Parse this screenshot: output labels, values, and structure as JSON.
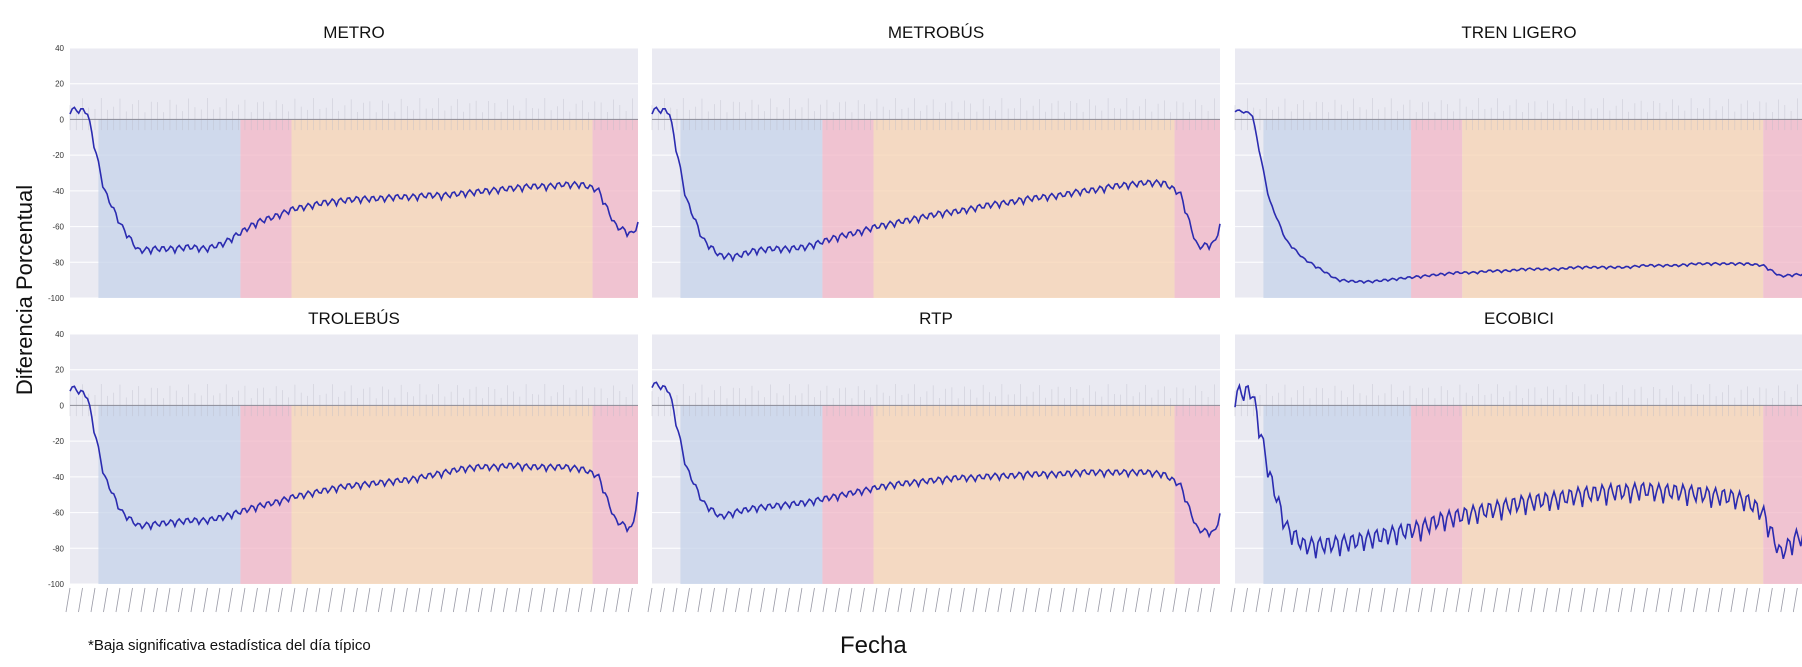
{
  "figure": {
    "y_axis_title": "Diferencia Porcentual",
    "x_axis_title": "Fecha",
    "footnote": "*Baja significativa estadística del día típico"
  },
  "colors": {
    "line": "#2b2bb0",
    "plot_bg": "#eaeaf2",
    "phase_1": "#c5d3ea",
    "phase_2": "#f2b6c6",
    "phase_3": "#f7d3b2",
    "phase_4": "#f2b6c6",
    "reference_bars": "#b9b9c6"
  },
  "chart_data": [
    {
      "type": "line",
      "title": "METRO",
      "ylim": [
        -100,
        40
      ],
      "yticks": [
        40,
        20,
        0,
        -20,
        -40,
        -60,
        -80,
        -100
      ],
      "grid": true,
      "series": [
        {
          "x": [
            0,
            3,
            6,
            9,
            12,
            15,
            18,
            21,
            24,
            27,
            30,
            33,
            36,
            39,
            42,
            45,
            48,
            51,
            54,
            57,
            60,
            63,
            66,
            69,
            72,
            75,
            78,
            81,
            84,
            87,
            90,
            93,
            96,
            99,
            100
          ],
          "y": [
            5,
            4,
            -40,
            -60,
            -74,
            -73,
            -73,
            -72,
            -73,
            -70,
            -64,
            -58,
            -55,
            -51,
            -49,
            -47,
            -46,
            -45,
            -45,
            -44,
            -44,
            -43,
            -43,
            -42,
            -41,
            -40,
            -39,
            -38,
            -38,
            -37,
            -37,
            -40,
            -60,
            -65,
            -59
          ]
        }
      ],
      "phase_bounds": [
        0,
        5,
        30,
        39,
        92,
        100
      ]
    },
    {
      "type": "line",
      "title": "METROBÚS",
      "ylim": [
        -100,
        40
      ],
      "yticks": [
        40,
        20,
        0,
        -20,
        -40,
        -60,
        -80,
        -100
      ],
      "grid": true,
      "series": [
        {
          "x": [
            0,
            3,
            6,
            9,
            12,
            15,
            18,
            21,
            24,
            27,
            30,
            33,
            36,
            39,
            42,
            45,
            48,
            51,
            54,
            57,
            60,
            63,
            66,
            69,
            72,
            75,
            78,
            81,
            84,
            87,
            90,
            93,
            96,
            99,
            100
          ],
          "y": [
            5,
            4,
            -45,
            -68,
            -77,
            -77,
            -74,
            -73,
            -73,
            -72,
            -69,
            -66,
            -64,
            -61,
            -59,
            -57,
            -55,
            -53,
            -52,
            -50,
            -48,
            -47,
            -45,
            -44,
            -43,
            -41,
            -40,
            -38,
            -37,
            -36,
            -36,
            -42,
            -72,
            -70,
            -60
          ]
        }
      ],
      "phase_bounds": [
        0,
        5,
        30,
        39,
        92,
        100
      ]
    },
    {
      "type": "line",
      "title": "TREN LIGERO",
      "ylim": [
        -100,
        40
      ],
      "yticks": [
        40,
        20,
        0,
        -20,
        -40,
        -60,
        -80,
        -100
      ],
      "grid": true,
      "series": [
        {
          "x": [
            0,
            3,
            6,
            9,
            12,
            15,
            18,
            21,
            24,
            27,
            30,
            33,
            36,
            39,
            42,
            45,
            48,
            51,
            54,
            57,
            60,
            63,
            66,
            69,
            72,
            75,
            78,
            81,
            84,
            87,
            90,
            93,
            96,
            99,
            100
          ],
          "y": [
            5,
            3,
            -45,
            -68,
            -78,
            -84,
            -90,
            -91,
            -91,
            -90,
            -89,
            -88,
            -87,
            -86,
            -86,
            -85,
            -85,
            -84,
            -84,
            -84,
            -83,
            -83,
            -83,
            -83,
            -82,
            -82,
            -82,
            -81,
            -81,
            -81,
            -81,
            -82,
            -88,
            -87,
            -87
          ]
        }
      ],
      "phase_bounds": [
        0,
        5,
        31,
        40,
        93,
        100
      ]
    },
    {
      "type": "line",
      "title": "TROLEBÚS",
      "ylim": [
        -100,
        40
      ],
      "yticks": [
        40,
        20,
        0,
        -20,
        -40,
        -60,
        -80,
        -100
      ],
      "grid": true,
      "series": [
        {
          "x": [
            0,
            3,
            6,
            9,
            12,
            15,
            18,
            21,
            24,
            27,
            30,
            33,
            36,
            39,
            42,
            45,
            48,
            51,
            54,
            57,
            60,
            63,
            66,
            69,
            72,
            75,
            78,
            81,
            84,
            87,
            90,
            93,
            96,
            99,
            100
          ],
          "y": [
            10,
            5,
            -40,
            -60,
            -68,
            -67,
            -66,
            -65,
            -65,
            -63,
            -60,
            -57,
            -55,
            -52,
            -50,
            -48,
            -46,
            -45,
            -44,
            -43,
            -42,
            -40,
            -38,
            -36,
            -35,
            -35,
            -34,
            -35,
            -35,
            -35,
            -36,
            -40,
            -65,
            -70,
            -50
          ]
        }
      ],
      "phase_bounds": [
        0,
        5,
        30,
        39,
        92,
        100
      ]
    },
    {
      "type": "line",
      "title": "RTP",
      "ylim": [
        -100,
        40
      ],
      "yticks": [
        40,
        20,
        0,
        -20,
        -40,
        -60,
        -80,
        -100
      ],
      "grid": true,
      "series": [
        {
          "x": [
            0,
            3,
            6,
            9,
            12,
            15,
            18,
            21,
            24,
            27,
            30,
            33,
            36,
            39,
            42,
            45,
            48,
            51,
            54,
            57,
            60,
            63,
            66,
            69,
            72,
            75,
            78,
            81,
            84,
            87,
            90,
            93,
            96,
            99,
            100
          ],
          "y": [
            12,
            8,
            -35,
            -55,
            -63,
            -60,
            -58,
            -57,
            -56,
            -55,
            -53,
            -51,
            -49,
            -47,
            -45,
            -44,
            -43,
            -42,
            -41,
            -41,
            -40,
            -40,
            -39,
            -39,
            -39,
            -38,
            -38,
            -38,
            -38,
            -38,
            -39,
            -45,
            -70,
            -72,
            -62
          ]
        }
      ],
      "phase_bounds": [
        0,
        5,
        30,
        39,
        92,
        100
      ]
    },
    {
      "type": "line",
      "title": "ECOBICI",
      "ylim": [
        -100,
        40
      ],
      "yticks": [
        40,
        20,
        0,
        -20,
        -40,
        -60,
        -80,
        -100
      ],
      "grid": true,
      "series": [
        {
          "x": [
            0,
            3,
            6,
            9,
            12,
            15,
            18,
            21,
            24,
            27,
            30,
            33,
            36,
            39,
            42,
            45,
            48,
            51,
            54,
            57,
            60,
            63,
            66,
            69,
            72,
            75,
            78,
            81,
            84,
            87,
            90,
            93,
            96,
            99,
            100
          ],
          "y": [
            5,
            6,
            -40,
            -70,
            -80,
            -80,
            -79,
            -78,
            -76,
            -74,
            -72,
            -70,
            -66,
            -64,
            -62,
            -60,
            -58,
            -56,
            -55,
            -54,
            -52,
            -51,
            -50,
            -50,
            -49,
            -50,
            -50,
            -51,
            -52,
            -53,
            -55,
            -62,
            -85,
            -75,
            -76
          ]
        }
      ],
      "phase_bounds": [
        0,
        5,
        31,
        40,
        93,
        100
      ]
    }
  ]
}
